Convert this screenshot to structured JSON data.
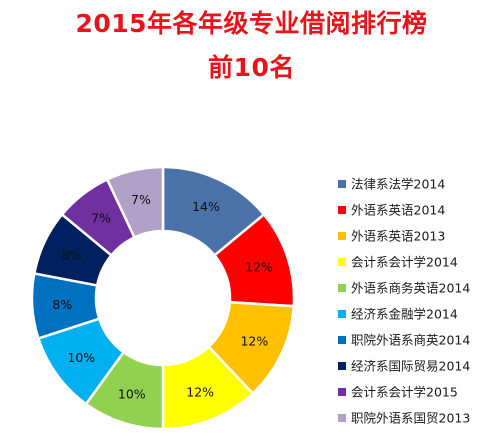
{
  "title": {
    "line1": "2015年各年级专业借阅排行榜",
    "line2": "前10名"
  },
  "chart_data": {
    "type": "pie",
    "title": "2015年各年级专业借阅排行榜 前10名",
    "variant": "donut",
    "legend_position": "right",
    "categories": [
      "法律系法学2014",
      "外语系英语2014",
      "外语系英语2013",
      "会计系会计学2014",
      "外语系商务英语2014",
      "经济系金融学2014",
      "职院外语系商英2014",
      "经济系国际贸易2014",
      "会计系会计学2015",
      "职院外语系国贸2013"
    ],
    "values": [
      14,
      12,
      12,
      12,
      10,
      10,
      8,
      8,
      7,
      7
    ],
    "labels": [
      "14%",
      "12%",
      "12%",
      "12%",
      "10%",
      "10%",
      "8%",
      "8%",
      "7%",
      "7%"
    ],
    "colors": [
      "#4a72a8",
      "#ff0000",
      "#ffc000",
      "#ffff00",
      "#92d050",
      "#00b0f0",
      "#0070c0",
      "#002060",
      "#7030a0",
      "#b1a0c7"
    ]
  }
}
